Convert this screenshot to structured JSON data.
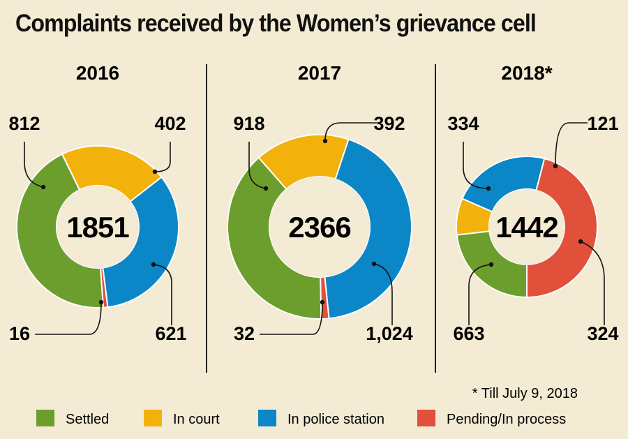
{
  "title": "Complaints received by the Women’s grievance cell",
  "footnote": "* Till July 9, 2018",
  "legend": [
    {
      "label": "Settled",
      "color": "#6b9e2c"
    },
    {
      "label": "In court",
      "color": "#f3b10b"
    },
    {
      "label": "In police station",
      "color": "#0b87c7"
    },
    {
      "label": "Pending/In process",
      "color": "#e0503a"
    }
  ],
  "chart_data": [
    {
      "type": "pie",
      "title": "2016",
      "total": "1851",
      "categories": [
        "Settled",
        "In court",
        "In police station",
        "Pending/In process"
      ],
      "values": [
        812,
        402,
        621,
        16
      ],
      "value_labels": [
        "812",
        "402",
        "621",
        "16"
      ]
    },
    {
      "type": "pie",
      "title": "2017",
      "total": "2366",
      "categories": [
        "Settled",
        "In court",
        "In police station",
        "Pending/In process"
      ],
      "values": [
        918,
        392,
        1024,
        32
      ],
      "value_labels": [
        "918",
        "392",
        "1,024",
        "32"
      ]
    },
    {
      "type": "pie",
      "title": "2018*",
      "total": "1442",
      "categories": [
        "Settled",
        "In court",
        "In police station",
        "Pending/In process"
      ],
      "values": [
        334,
        121,
        324,
        663
      ],
      "value_labels": [
        "334",
        "121",
        "324",
        "663"
      ]
    }
  ]
}
